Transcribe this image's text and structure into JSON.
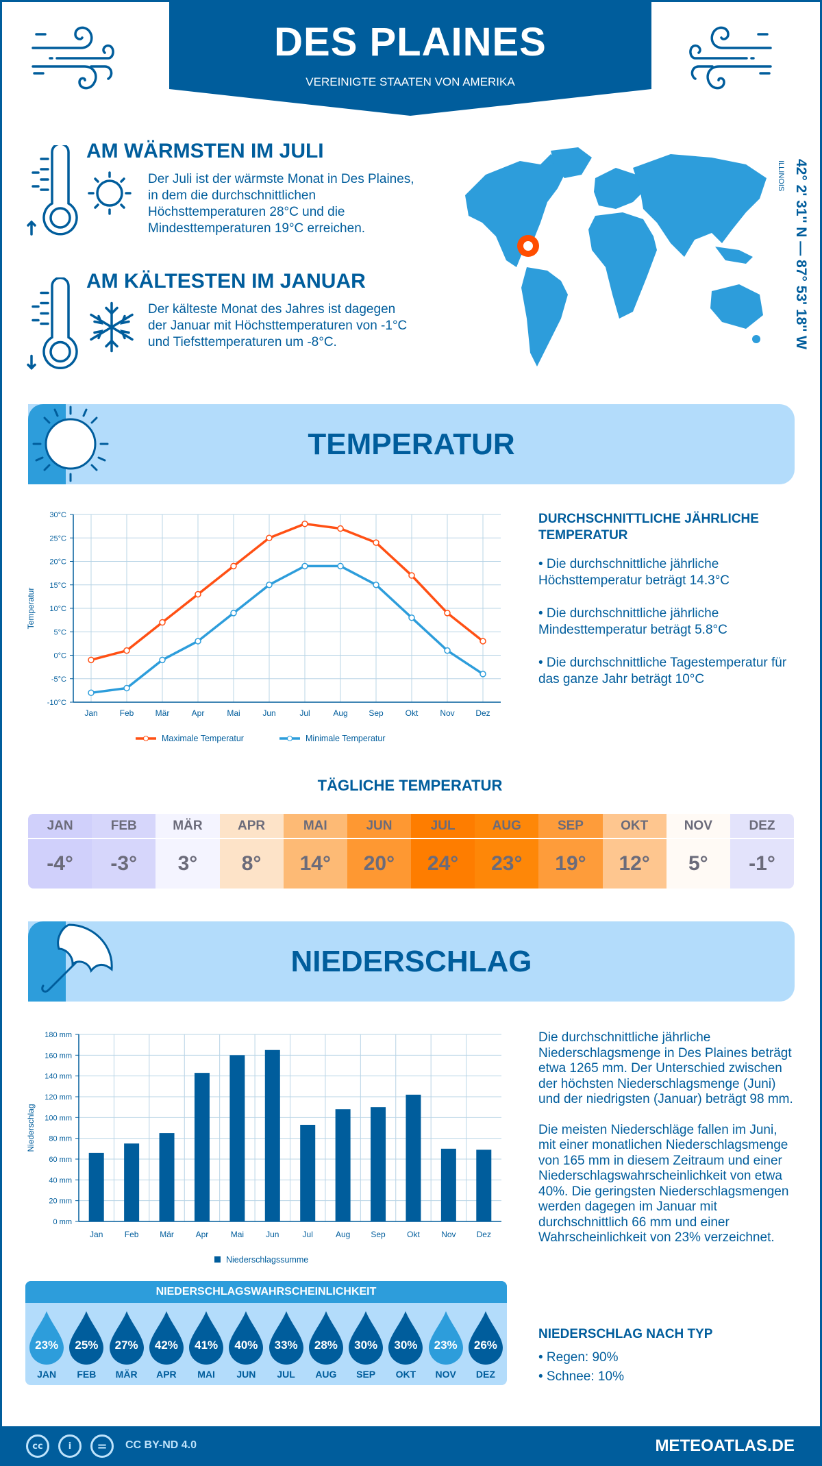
{
  "header": {
    "title": "DES PLAINES",
    "subtitle": "VEREINIGTE STAATEN VON AMERIKA",
    "left_icon": "wind-icon",
    "right_icon": "wind-icon"
  },
  "warmest": {
    "heading": "AM WÄRMSTEN IM JULI",
    "icon": "thermometer-sun-icon",
    "lines": [
      "Der Juli ist der wärmste Monat in Des Plaines,",
      "in dem die durchschnittlichen",
      "Höchsttemperaturen 28°C und die",
      "Mindesttemperaturen 19°C erreichen."
    ]
  },
  "coldest": {
    "heading": "AM KÄLTESTEN IM JANUAR",
    "icon": "thermometer-snowflake-icon",
    "lines": [
      "Der kälteste Monat des Jahres ist dagegen",
      "der Januar mit Höchsttemperaturen von -1°C",
      "und Tiefsttemperaturen um -8°C."
    ]
  },
  "location": {
    "coordinates": "42° 2' 31'' N — 87° 53' 18'' W",
    "region": "ILLINOIS",
    "map_icon": "world-map",
    "marker_color": "#ff4d00"
  },
  "temperature": {
    "section_title": "TEMPERATUR",
    "summary_heading": "DURCHSCHNITTLICHE JÄHRLICHE TEMPERATUR",
    "bullets": [
      "• Die durchschnittliche jährliche Höchsttemperatur beträgt 14.3°C",
      "• Die durchschnittliche jährliche Mindesttemperatur beträgt 5.8°C",
      "• Die durchschnittliche Tagestemperatur für das ganze Jahr beträgt 10°C"
    ],
    "daily_heading": "TÄGLICHE TEMPERATUR",
    "daily": [
      {
        "month": "JAN",
        "value": "-4°",
        "color": "#d0d0fb"
      },
      {
        "month": "FEB",
        "value": "-3°",
        "color": "#d6d6fb"
      },
      {
        "month": "MÄR",
        "value": "3°",
        "color": "#f4f4ff"
      },
      {
        "month": "APR",
        "value": "8°",
        "color": "#fde3c8"
      },
      {
        "month": "MAI",
        "value": "14°",
        "color": "#fdba75"
      },
      {
        "month": "JUN",
        "value": "20°",
        "color": "#fe9832"
      },
      {
        "month": "JUL",
        "value": "24°",
        "color": "#fe7d00"
      },
      {
        "month": "AUG",
        "value": "23°",
        "color": "#fe8708"
      },
      {
        "month": "SEP",
        "value": "19°",
        "color": "#fe9c3a"
      },
      {
        "month": "OKT",
        "value": "12°",
        "color": "#fec68f"
      },
      {
        "month": "NOV",
        "value": "5°",
        "color": "#fffaf5"
      },
      {
        "month": "DEZ",
        "value": "-1°",
        "color": "#e3e3fb"
      }
    ]
  },
  "precipitation": {
    "section_title": "NIEDERSCHLAG",
    "paragraphs": [
      "Die durchschnittliche jährliche Niederschlagsmenge in Des Plaines beträgt etwa 1265 mm. Der Unterschied zwischen der höchsten Niederschlagsmenge (Juni) und der niedrigsten (Januar) beträgt 98 mm.",
      "Die meisten Niederschläge fallen im Juni, mit einer monatlichen Niederschlagsmenge von 165 mm in diesem Zeitraum und einer Niederschlagswahrscheinlichkeit von etwa 40%. Die geringsten Niederschlagsmengen werden dagegen im Januar mit durchschnittlich 66 mm und einer Wahrscheinlichkeit von 23% verzeichnet."
    ],
    "type_heading": "NIEDERSCHLAG NACH TYP",
    "types": [
      "• Regen: 90%",
      "• Schnee: 10%"
    ],
    "probability_heading": "NIEDERSCHLAGSWAHRSCHEINLICHKEIT",
    "probability": [
      {
        "month": "JAN",
        "value": "23%",
        "color": "#2d9ddb"
      },
      {
        "month": "FEB",
        "value": "25%",
        "color": "#005d9c"
      },
      {
        "month": "MÄR",
        "value": "27%",
        "color": "#005d9c"
      },
      {
        "month": "APR",
        "value": "42%",
        "color": "#005d9c"
      },
      {
        "month": "MAI",
        "value": "41%",
        "color": "#005d9c"
      },
      {
        "month": "JUN",
        "value": "40%",
        "color": "#005d9c"
      },
      {
        "month": "JUL",
        "value": "33%",
        "color": "#005d9c"
      },
      {
        "month": "AUG",
        "value": "28%",
        "color": "#005d9c"
      },
      {
        "month": "SEP",
        "value": "30%",
        "color": "#005d9c"
      },
      {
        "month": "OKT",
        "value": "30%",
        "color": "#005d9c"
      },
      {
        "month": "NOV",
        "value": "23%",
        "color": "#2d9ddb"
      },
      {
        "month": "DEZ",
        "value": "26%",
        "color": "#005d9c"
      }
    ]
  },
  "footer": {
    "license": "CC BY-ND 4.0",
    "brand": "METEOATLAS.DE",
    "icons": [
      "cc-icon",
      "by-icon",
      "nd-icon"
    ]
  },
  "chart_data": [
    {
      "type": "line",
      "categories": [
        "Jan",
        "Feb",
        "Mär",
        "Apr",
        "Mai",
        "Jun",
        "Jul",
        "Aug",
        "Sep",
        "Okt",
        "Nov",
        "Dez"
      ],
      "series": [
        {
          "name": "Maximale Temperatur",
          "values": [
            -1,
            1,
            7,
            13,
            19,
            25,
            28,
            27,
            24,
            17,
            9,
            3
          ],
          "color": "#ff5014"
        },
        {
          "name": "Minimale Temperatur",
          "values": [
            -8,
            -7,
            -1,
            3,
            9,
            15,
            19,
            19,
            15,
            8,
            1,
            -4
          ],
          "color": "#2d9ddb"
        }
      ],
      "ylabel": "Temperatur",
      "yticks": [
        "30°C",
        "25°C",
        "20°C",
        "15°C",
        "10°C",
        "5°C",
        "0°C",
        "-5°C",
        "-10°C"
      ],
      "ylim": [
        -10,
        30
      ],
      "grid": true,
      "legend": "bottom"
    },
    {
      "type": "bar",
      "categories": [
        "Jan",
        "Feb",
        "Mär",
        "Apr",
        "Mai",
        "Jun",
        "Jul",
        "Aug",
        "Sep",
        "Okt",
        "Nov",
        "Dez"
      ],
      "series": [
        {
          "name": "Niederschlagssumme",
          "values": [
            66,
            75,
            85,
            143,
            160,
            165,
            93,
            108,
            110,
            122,
            70,
            69
          ],
          "color": "#005d9c"
        }
      ],
      "ylabel": "Niederschlag",
      "yticks": [
        "180 mm",
        "160 mm",
        "140 mm",
        "120 mm",
        "100 mm",
        "80 mm",
        "60 mm",
        "40 mm",
        "20 mm",
        "0 mm"
      ],
      "ylim": [
        0,
        180
      ],
      "grid": true,
      "legend": "bottom"
    }
  ]
}
